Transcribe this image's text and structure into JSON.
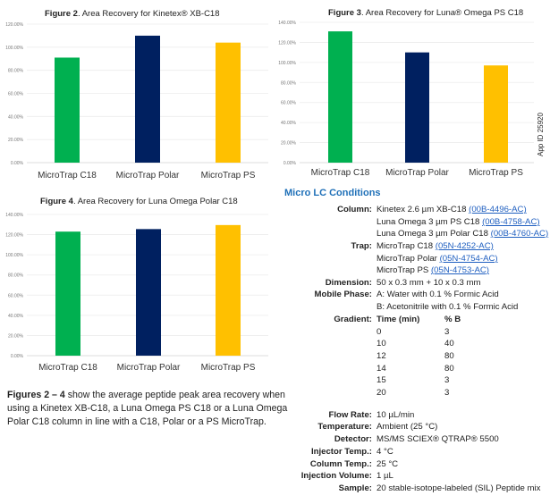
{
  "chart_data": [
    {
      "type": "bar",
      "figure_label": "Figure 2",
      "title": ". Area Recovery for Kinetex® XB-C18",
      "categories": [
        "MicroTrap C18",
        "MicroTrap Polar",
        "MicroTrap PS"
      ],
      "values": [
        91,
        110,
        104
      ],
      "yticks": [
        "0.00%",
        "20.00%",
        "40.00%",
        "60.00%",
        "80.00%",
        "100.00%",
        "120.00%"
      ],
      "ylim": [
        0,
        120
      ],
      "grid": true,
      "colors": [
        "#00b050",
        "#002060",
        "#ffc000"
      ]
    },
    {
      "type": "bar",
      "figure_label": "Figure 3",
      "title": ". Area Recovery for Luna® Omega PS C18",
      "categories": [
        "MicroTrap C18",
        "MicroTrap Polar",
        "MicroTrap PS"
      ],
      "values": [
        131,
        110,
        97
      ],
      "yticks": [
        "0.00%",
        "20.00%",
        "40.00%",
        "60.00%",
        "80.00%",
        "100.00%",
        "120.00%",
        "140.00%"
      ],
      "ylim": [
        0,
        140
      ],
      "grid": true,
      "colors": [
        "#00b050",
        "#002060",
        "#ffc000"
      ]
    },
    {
      "type": "bar",
      "figure_label": "Figure 4",
      "title": ". Area Recovery for Luna Omega Polar C18",
      "categories": [
        "MicroTrap C18",
        "MicroTrap Polar",
        "MicroTrap PS"
      ],
      "values": [
        123,
        125.5,
        129.5
      ],
      "yticks": [
        "0.00%",
        "20.00%",
        "40.00%",
        "60.00%",
        "80.00%",
        "100.00%",
        "120.00%",
        "140.00%"
      ],
      "ylim": [
        0,
        140
      ],
      "grid": true,
      "colors": [
        "#00b050",
        "#002060",
        "#ffc000"
      ]
    }
  ],
  "app_id": "App ID 25920",
  "conditions": {
    "title": "Micro LC Conditions",
    "column_label": "Column:",
    "columns": [
      {
        "text": "Kinetex 2.6 µm XB-C18 ",
        "link": "(00B-4496-AC)"
      },
      {
        "text": "Luna Omega 3 µm PS C18 ",
        "link": "(00B-4758-AC)"
      },
      {
        "text": "Luna Omega 3 µm Polar C18 ",
        "link": "(00B-4760-AC)"
      }
    ],
    "trap_label": "Trap:",
    "traps": [
      {
        "text": "MicroTrap C18 ",
        "link": "(05N-4252-AC)"
      },
      {
        "text": "MicroTrap Polar ",
        "link": "(05N-4754-AC)"
      },
      {
        "text": "MicroTrap PS ",
        "link": "(05N-4753-AC)"
      }
    ],
    "dimension_label": "Dimension:",
    "dimension": "50 x 0.3 mm + 10 x 0.3 mm",
    "mobile_phase_label": "Mobile Phase:",
    "mobile_phase": [
      "A: Water with 0.1 % Formic Acid",
      "B: Acetonitrile with 0.1 % Formic Acid"
    ],
    "gradient_label": "Gradient:",
    "gradient_headers": [
      "Time (min)",
      "% B"
    ],
    "gradient_rows": [
      [
        "0",
        "3"
      ],
      [
        "10",
        "40"
      ],
      [
        "12",
        "80"
      ],
      [
        "14",
        "80"
      ],
      [
        "15",
        "3"
      ],
      [
        "20",
        "3"
      ]
    ],
    "flow_rate_label": "Flow Rate:",
    "flow_rate": "10 µL/min",
    "temperature_label": "Temperature:",
    "temperature": "Ambient (25 °C)",
    "detector_label": "Detector:",
    "detector": "MS/MS SCIEX® QTRAP® 5500",
    "injector_temp_label": "Injector Temp.:",
    "injector_temp": "4 °C",
    "column_temp_label": "Column Temp.:",
    "column_temp": "25 °C",
    "injection_volume_label": "Injection Volume:",
    "injection_volume": "1 µL",
    "sample_label": "Sample:",
    "sample": "20 stable-isotope-labeled (SIL) Peptide mix"
  },
  "caption": {
    "bold": "Figures 2 – 4",
    "text": " show the average peptide peak area recovery when using a Kinetex XB-C18, a Luna Omega PS C18 or a Luna Omega Polar C18 column in line with a C18, Polar or a PS MicroTrap."
  }
}
